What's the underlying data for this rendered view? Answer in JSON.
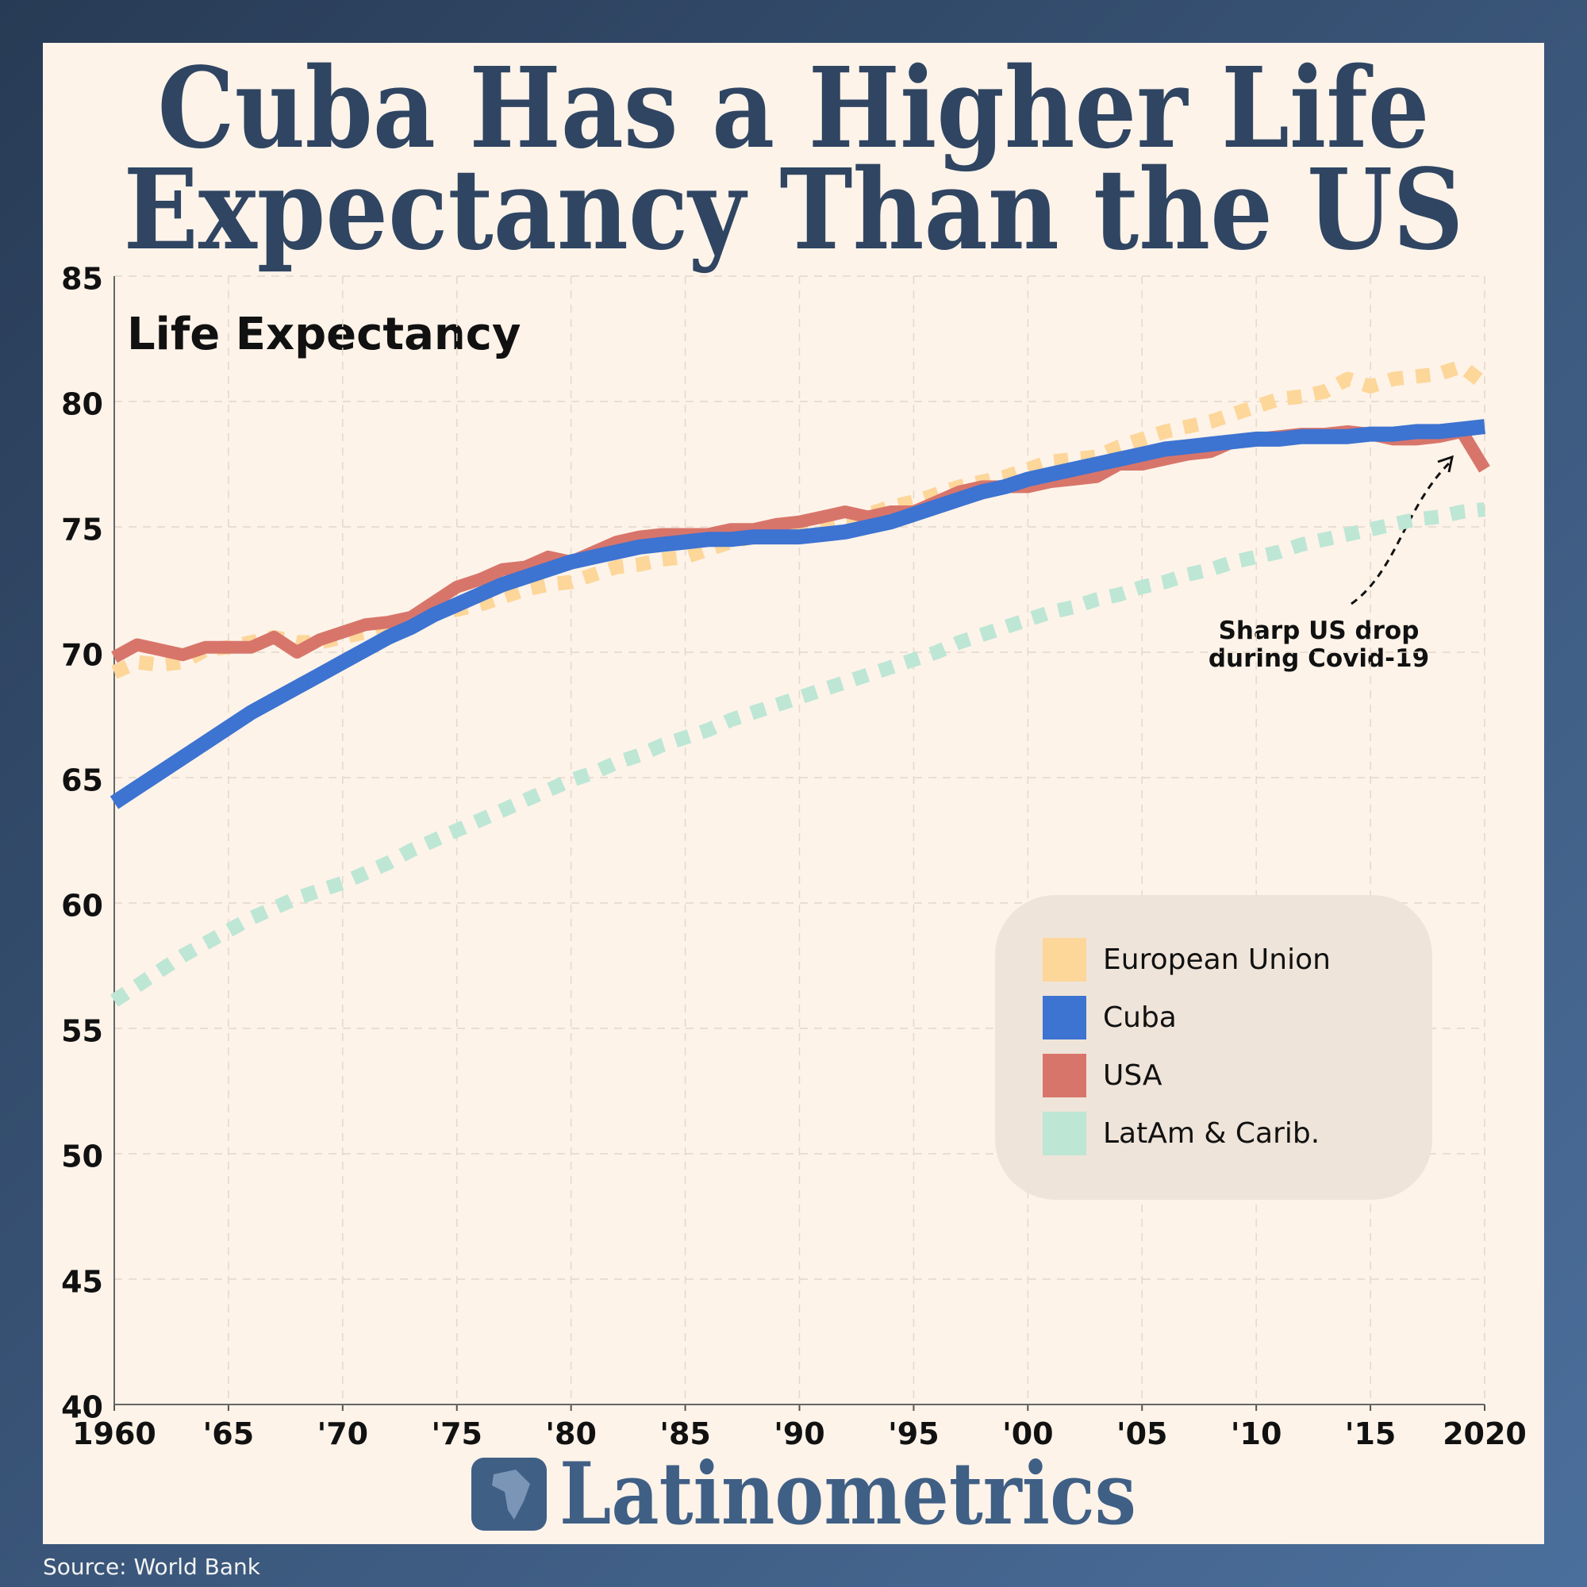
{
  "chart_data": {
    "type": "line",
    "title": [
      "Cuba Has a Higher Life",
      "Expectancy Than the US"
    ],
    "subtitle": "Life Expectancy",
    "annotation": [
      "Sharp US drop",
      "during Covid-19"
    ],
    "brand": "Latinometrics",
    "source": "Source: World Bank",
    "x": [
      1960,
      1961,
      1962,
      1963,
      1964,
      1965,
      1966,
      1967,
      1968,
      1969,
      1970,
      1971,
      1972,
      1973,
      1974,
      1975,
      1976,
      1977,
      1978,
      1979,
      1980,
      1981,
      1982,
      1983,
      1984,
      1985,
      1986,
      1987,
      1988,
      1989,
      1990,
      1991,
      1992,
      1993,
      1994,
      1995,
      1996,
      1997,
      1998,
      1999,
      2000,
      2001,
      2002,
      2003,
      2004,
      2005,
      2006,
      2007,
      2008,
      2009,
      2010,
      2011,
      2012,
      2013,
      2014,
      2015,
      2016,
      2017,
      2018,
      2019,
      2020
    ],
    "series": [
      {
        "name": "European Union",
        "color": "#fdd69a",
        "style": "dotted",
        "values": [
          69.2,
          69.6,
          69.5,
          69.6,
          70.1,
          70.2,
          70.4,
          70.6,
          70.4,
          70.4,
          70.6,
          70.8,
          71.1,
          71.3,
          71.6,
          71.7,
          71.9,
          72.2,
          72.5,
          72.7,
          72.8,
          73.1,
          73.4,
          73.5,
          73.7,
          73.8,
          74.1,
          74.4,
          74.6,
          74.8,
          75.0,
          75.2,
          75.4,
          75.5,
          75.8,
          76.0,
          76.3,
          76.6,
          76.8,
          77.0,
          77.3,
          77.6,
          77.7,
          77.8,
          78.2,
          78.5,
          78.8,
          79.0,
          79.2,
          79.5,
          79.8,
          80.1,
          80.2,
          80.4,
          80.9,
          80.6,
          80.9,
          81.0,
          81.1,
          81.4,
          80.7
        ]
      },
      {
        "name": "Cuba",
        "color": "#3d73d1",
        "style": "solid",
        "values": [
          64.0,
          64.6,
          65.2,
          65.8,
          66.4,
          67.0,
          67.6,
          68.1,
          68.6,
          69.1,
          69.6,
          70.1,
          70.6,
          71.0,
          71.5,
          71.9,
          72.3,
          72.7,
          73.0,
          73.3,
          73.6,
          73.8,
          74.0,
          74.2,
          74.3,
          74.4,
          74.5,
          74.5,
          74.6,
          74.6,
          74.6,
          74.7,
          74.8,
          75.0,
          75.2,
          75.5,
          75.8,
          76.1,
          76.4,
          76.6,
          76.9,
          77.1,
          77.3,
          77.5,
          77.7,
          77.9,
          78.1,
          78.2,
          78.3,
          78.4,
          78.5,
          78.5,
          78.6,
          78.6,
          78.6,
          78.7,
          78.7,
          78.8,
          78.8,
          78.9,
          79.0
        ]
      },
      {
        "name": "USA",
        "color": "#d8756a",
        "style": "solid",
        "values": [
          69.8,
          70.3,
          70.1,
          69.9,
          70.2,
          70.2,
          70.2,
          70.6,
          70.0,
          70.5,
          70.8,
          71.1,
          71.2,
          71.4,
          72.0,
          72.6,
          72.9,
          73.3,
          73.4,
          73.8,
          73.6,
          74.0,
          74.4,
          74.6,
          74.7,
          74.7,
          74.7,
          74.9,
          74.9,
          75.1,
          75.2,
          75.4,
          75.6,
          75.4,
          75.6,
          75.6,
          76.0,
          76.4,
          76.6,
          76.6,
          76.6,
          76.8,
          76.9,
          77.0,
          77.5,
          77.5,
          77.7,
          77.9,
          78.0,
          78.4,
          78.5,
          78.6,
          78.7,
          78.7,
          78.8,
          78.7,
          78.5,
          78.5,
          78.6,
          78.8,
          77.3
        ]
      },
      {
        "name": "LatAm & Carib.",
        "color": "#bde6d5",
        "style": "dotted",
        "values": [
          56.1,
          56.7,
          57.3,
          57.9,
          58.4,
          58.9,
          59.4,
          59.8,
          60.2,
          60.5,
          60.8,
          61.2,
          61.6,
          62.1,
          62.5,
          62.9,
          63.3,
          63.7,
          64.1,
          64.5,
          64.9,
          65.2,
          65.6,
          65.9,
          66.3,
          66.6,
          66.9,
          67.3,
          67.6,
          67.9,
          68.2,
          68.5,
          68.8,
          69.1,
          69.4,
          69.7,
          70.0,
          70.4,
          70.7,
          71.0,
          71.3,
          71.6,
          71.8,
          72.1,
          72.3,
          72.6,
          72.8,
          73.1,
          73.3,
          73.6,
          73.8,
          74.0,
          74.3,
          74.5,
          74.7,
          74.9,
          75.1,
          75.3,
          75.4,
          75.6,
          75.7
        ]
      }
    ],
    "draw_order": [
      3,
      0,
      2,
      1
    ],
    "xlim": [
      1960,
      2020
    ],
    "xticks": [
      1960,
      {
        "value": 1965,
        "label": "'65"
      },
      {
        "value": 1970,
        "label": "'70"
      },
      {
        "value": 1975,
        "label": "'75"
      },
      {
        "value": 1980,
        "label": "'80"
      },
      {
        "value": 1985,
        "label": "'85"
      },
      {
        "value": 1990,
        "label": "'90"
      },
      {
        "value": 1995,
        "label": "'95"
      },
      {
        "value": 2000,
        "label": "'00"
      },
      {
        "value": 2005,
        "label": "'05"
      },
      {
        "value": 2010,
        "label": "'10"
      },
      {
        "value": 2015,
        "label": "'15"
      },
      2020
    ],
    "ylim": [
      40,
      85
    ],
    "yticks": [
      40,
      45,
      50,
      55,
      60,
      65,
      70,
      75,
      80,
      85
    ],
    "grid": true,
    "legend": "lower right"
  }
}
